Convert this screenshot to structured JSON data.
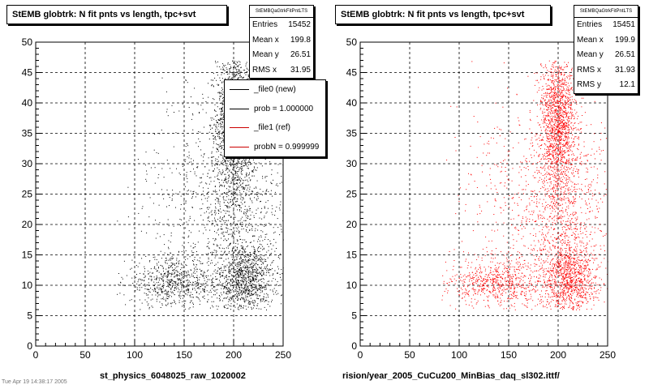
{
  "footer_text": "Tue Apr 19 14:38:17 2005",
  "panels": [
    {
      "title": "StEMB globtrk: N fit pnts vs length, tpc+svt",
      "stats": {
        "name": "StEMBQaGtrkFitPntLTS",
        "rows": [
          {
            "label": "Entries",
            "value": "15452"
          },
          {
            "label": "Mean x",
            "value": "199.8"
          },
          {
            "label": "Mean y",
            "value": "26.51"
          },
          {
            "label": "RMS x",
            "value": "31.95"
          }
        ]
      },
      "legend": [
        {
          "label": "_file0 (new)",
          "color": "#000000"
        },
        {
          "label": "prob = 1.000000",
          "color": "#000000"
        },
        {
          "label": "_file1 (ref)",
          "color": "#cc0000"
        },
        {
          "label": "probN = 0.999999",
          "color": "#cc0000"
        }
      ],
      "xtitle": "st_physics_6048025_raw_1020002"
    },
    {
      "title": "StEMB globtrk: N fit pnts vs length, tpc+svt",
      "stats": {
        "name": "StEMBQaGtrkFitPntLTS",
        "rows": [
          {
            "label": "Entries",
            "value": "15451"
          },
          {
            "label": "Mean x",
            "value": "199.9"
          },
          {
            "label": "Mean y",
            "value": "26.51"
          },
          {
            "label": "RMS x",
            "value": "31.93"
          },
          {
            "label": "RMS y",
            "value": "12.1"
          }
        ]
      },
      "xtitle": "rision/year_2005_CuCu200_MinBias_daq_sl302.ittf/"
    }
  ],
  "chart_data": [
    {
      "type": "scatter",
      "title": "StEMB globtrk: N fit pnts vs length, tpc+svt",
      "xlabel": "st_physics_6048025_raw_1020002",
      "ylabel": "",
      "xlim": [
        0,
        250
      ],
      "ylim": [
        0,
        50
      ],
      "xticks": [
        0,
        50,
        100,
        150,
        200,
        250
      ],
      "yticks": [
        0,
        5,
        10,
        15,
        20,
        25,
        30,
        35,
        40,
        45,
        50
      ],
      "grid": true,
      "series": [
        {
          "name": "_file0 (new)",
          "color": "#000000",
          "clusters": [
            {
              "cx": 200,
              "cy": 37,
              "sx": 9,
              "sy": 6,
              "n": 1500
            },
            {
              "cx": 212,
              "cy": 11,
              "sx": 14,
              "sy": 3,
              "n": 1000
            },
            {
              "cx": 140,
              "cy": 10.5,
              "sx": 25,
              "sy": 2,
              "n": 700
            },
            {
              "cx": 205,
              "cy": 22,
              "sx": 22,
              "sy": 8,
              "n": 900
            },
            {
              "cx": 165,
              "cy": 25,
              "sx": 35,
              "sy": 10,
              "n": 400
            }
          ]
        }
      ]
    },
    {
      "type": "scatter",
      "title": "StEMB globtrk: N fit pnts vs length, tpc+svt",
      "xlabel": "rision/year_2005_CuCu200_MinBias_daq_sl302.ittf/",
      "ylabel": "",
      "xlim": [
        0,
        250
      ],
      "ylim": [
        0,
        50
      ],
      "xticks": [
        0,
        50,
        100,
        150,
        200,
        250
      ],
      "yticks": [
        0,
        5,
        10,
        15,
        20,
        25,
        30,
        35,
        40,
        45,
        50
      ],
      "grid": true,
      "series": [
        {
          "name": "_file1 (ref)",
          "color": "#ff0000",
          "clusters": [
            {
              "cx": 200,
              "cy": 37,
              "sx": 9,
              "sy": 6,
              "n": 1500
            },
            {
              "cx": 212,
              "cy": 11,
              "sx": 14,
              "sy": 3,
              "n": 1000
            },
            {
              "cx": 140,
              "cy": 10.5,
              "sx": 25,
              "sy": 2,
              "n": 700
            },
            {
              "cx": 205,
              "cy": 22,
              "sx": 22,
              "sy": 8,
              "n": 900
            },
            {
              "cx": 165,
              "cy": 25,
              "sx": 35,
              "sy": 10,
              "n": 400
            }
          ]
        }
      ]
    }
  ]
}
